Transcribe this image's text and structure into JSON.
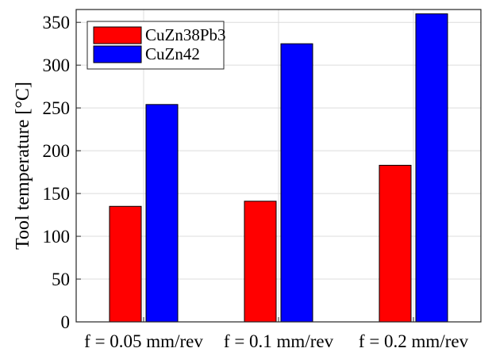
{
  "chart_data": {
    "type": "bar",
    "categories": [
      "f = 0.05 mm/rev",
      "f = 0.1 mm/rev",
      "f = 0.2 mm/rev"
    ],
    "series": [
      {
        "name": "CuZn38Pb3",
        "color": "#ff0000",
        "values": [
          135,
          141,
          183
        ]
      },
      {
        "name": "CuZn42",
        "color": "#0000ff",
        "values": [
          254,
          325,
          360
        ]
      }
    ],
    "ylabel": "Tool temperature [°C]",
    "xlabel": "",
    "ylim": [
      0,
      365
    ],
    "yticks": [
      0,
      50,
      100,
      150,
      200,
      250,
      300,
      350
    ],
    "grid": true,
    "legend_position": "top-left"
  }
}
